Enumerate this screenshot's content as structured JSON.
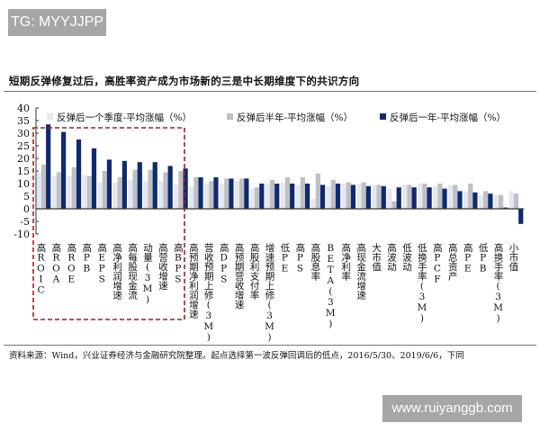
{
  "watermark_top": "TG: MYYJJPP",
  "watermark_bottom": "www.ruiyanggb.com",
  "title": "短期反弹修复过后，高胜率资产成为市场新的三是中长期维度下的共识方向",
  "source": "资料来源：Wind，兴业证券经济与金融研究院整理。起点选择第一波反弹回调后的低点，2016/5/30、2019/6/6，下同",
  "colors": {
    "q": "#e3e8f3",
    "h": "#c0c0c0",
    "y": "#0f2a72",
    "box": "#a41e22",
    "axis": "#333333"
  },
  "chart_data": {
    "type": "bar",
    "title": "短期反弹修复过后，高胜率资产成为市场新的三是中长期维度下的共识方向",
    "xlabel": "",
    "ylabel": "",
    "ylim": [
      -10,
      40
    ],
    "yticks": [
      40,
      35,
      30,
      25,
      20,
      15,
      10,
      5,
      0,
      -5,
      -10
    ],
    "legend_position": "top",
    "grid": false,
    "categories": [
      "高ROIC",
      "高ROA",
      "高ROE",
      "高PB",
      "高EPS",
      "高净利润增速",
      "高每股现金流",
      "动量(3M)",
      "高营收增速",
      "高BPS",
      "高预期净利润增速",
      "营收预期上修(3M)",
      "高DPS",
      "高预期营收增速",
      "高股利支付率",
      "增速预期上修(3M)",
      "低PE",
      "高PS",
      "高股息率",
      "BETA(3M)",
      "高净利率",
      "高现金流增速",
      "大市值",
      "高波动",
      "低波动",
      "低换手率(3M)",
      "高PCF",
      "高总资产",
      "高PE",
      "低PB",
      "高换手率(3M)",
      "小市值"
    ],
    "series": [
      {
        "name": "反弹后一个季度-平均涨幅（%）",
        "values": [
          14.5,
          13.0,
          13.0,
          13.5,
          10.5,
          10.5,
          11.5,
          11.0,
          11.0,
          9.5,
          9.0,
          10.0,
          10.0,
          11.0,
          8.0,
          10.0,
          10.5,
          9.5,
          4.0,
          9.0,
          10.0,
          10.0,
          9.5,
          8.0,
          9.5,
          10.0,
          9.0,
          9.5,
          7.0,
          5.5,
          5.5,
          7.0
        ]
      },
      {
        "name": "反弹后半年-平均涨幅（%）",
        "values": [
          17.5,
          14.5,
          16.5,
          13.0,
          15.0,
          12.5,
          15.5,
          15.5,
          14.5,
          15.0,
          12.5,
          11.0,
          12.0,
          12.0,
          8.5,
          11.5,
          12.5,
          12.5,
          14.0,
          11.5,
          10.5,
          10.5,
          9.5,
          3.0,
          9.5,
          10.0,
          10.0,
          9.5,
          10.0,
          7.0,
          5.5,
          6.0
        ]
      },
      {
        "name": "反弹后一年-平均涨幅（%）",
        "values": [
          33.5,
          30.5,
          27.5,
          24.0,
          19.5,
          19.0,
          18.5,
          18.5,
          17.0,
          16.0,
          12.5,
          12.5,
          12.0,
          12.0,
          10.0,
          10.0,
          10.0,
          10.0,
          9.5,
          10.0,
          9.5,
          9.0,
          9.0,
          8.5,
          8.5,
          8.5,
          8.0,
          7.0,
          6.5,
          6.0,
          0.5,
          -6.0
        ]
      }
    ],
    "annotations": [
      {
        "type": "dashed-box",
        "covers": [
          "高ROIC",
          "高BPS"
        ],
        "color": "#a41e22"
      }
    ]
  }
}
